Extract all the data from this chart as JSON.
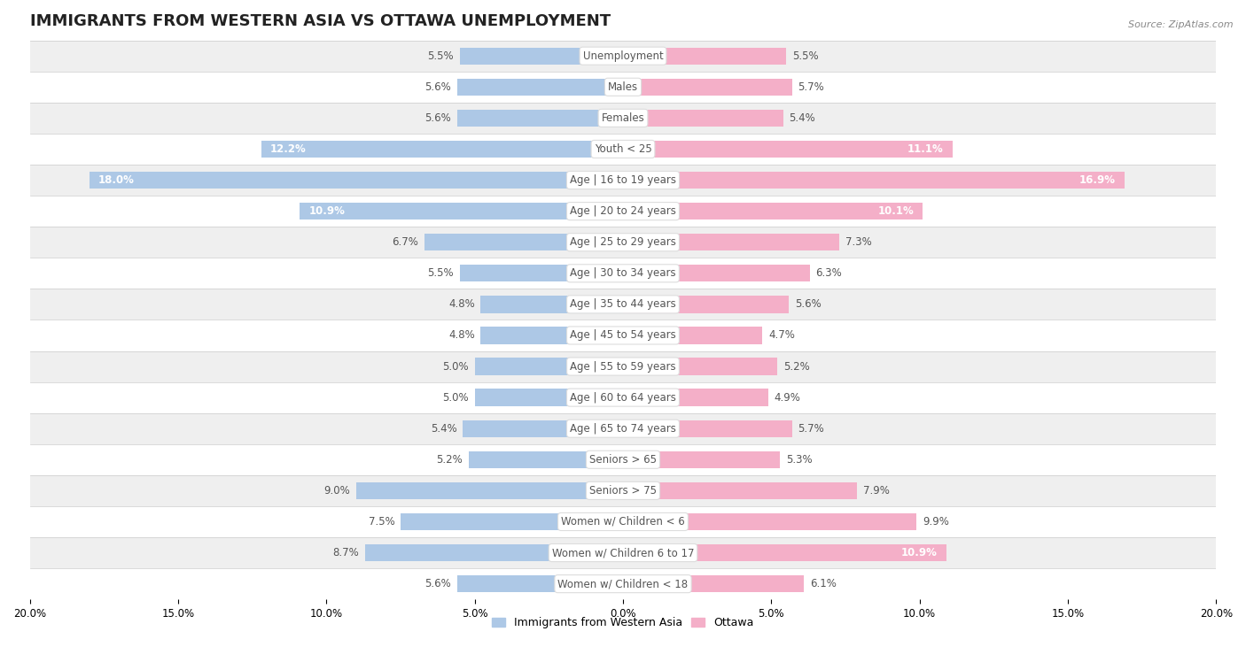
{
  "title": "IMMIGRANTS FROM WESTERN ASIA VS OTTAWA UNEMPLOYMENT",
  "source": "Source: ZipAtlas.com",
  "categories": [
    "Unemployment",
    "Males",
    "Females",
    "Youth < 25",
    "Age | 16 to 19 years",
    "Age | 20 to 24 years",
    "Age | 25 to 29 years",
    "Age | 30 to 34 years",
    "Age | 35 to 44 years",
    "Age | 45 to 54 years",
    "Age | 55 to 59 years",
    "Age | 60 to 64 years",
    "Age | 65 to 74 years",
    "Seniors > 65",
    "Seniors > 75",
    "Women w/ Children < 6",
    "Women w/ Children 6 to 17",
    "Women w/ Children < 18"
  ],
  "western_asia": [
    5.5,
    5.6,
    5.6,
    12.2,
    18.0,
    10.9,
    6.7,
    5.5,
    4.8,
    4.8,
    5.0,
    5.0,
    5.4,
    5.2,
    9.0,
    7.5,
    8.7,
    5.6
  ],
  "ottawa": [
    5.5,
    5.7,
    5.4,
    11.1,
    16.9,
    10.1,
    7.3,
    6.3,
    5.6,
    4.7,
    5.2,
    4.9,
    5.7,
    5.3,
    7.9,
    9.9,
    10.9,
    6.1
  ],
  "xlim": 20.0,
  "bar_height": 0.55,
  "blue_color": "#adc8e6",
  "pink_color": "#f4afc8",
  "bg_row_light": "#efefef",
  "bg_row_dark": "#ffffff",
  "title_fontsize": 13,
  "label_fontsize": 8.5,
  "value_fontsize": 8.5,
  "legend_fontsize": 9
}
